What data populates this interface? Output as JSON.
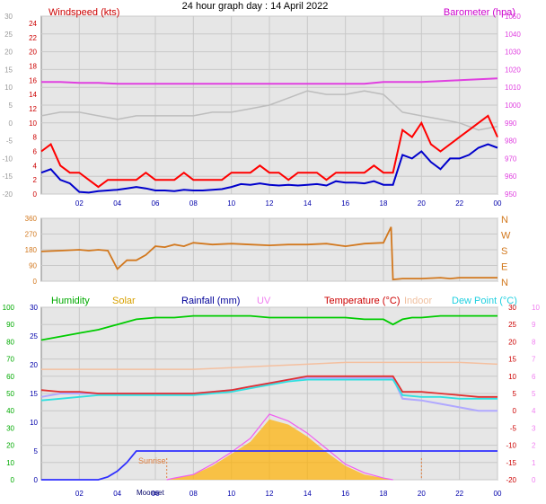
{
  "page": {
    "title": "24 hour graph day : 14 April 2022"
  },
  "colors": {
    "plot_bg": "#e6e6e6",
    "frame": "#808080",
    "wind_bar": "#ff0000",
    "wind_avg": "#0000cc",
    "baro": "#e040e0",
    "grey_trace": "#bdbdbd",
    "wind_dir": "#d2781e",
    "humidity": "#00cc00",
    "solar": "#ffb000",
    "rain": "#3030ff",
    "uv": "#f060f0",
    "temperature": "#e03030",
    "indoor": "#f4c0a0",
    "dew_point": "#30e0e0",
    "feels": "#b0a8ff",
    "sunrise_marker": "#e08040"
  },
  "chart_data": [
    {
      "type": "line",
      "panel": "wind",
      "title": "",
      "y_left_label": "Windspeed (kts)",
      "y_right_label": "Barometer (hpa)",
      "x_ticks": [
        "02",
        "04",
        "06",
        "08",
        "10",
        "12",
        "14",
        "16",
        "18",
        "20",
        "22",
        "00"
      ],
      "x_range_hours": [
        0,
        24
      ],
      "left_outer_ticks": [
        "30",
        "25",
        "20",
        "15",
        "10",
        "5",
        "0",
        "-5",
        "-10",
        "-15",
        "-20"
      ],
      "left_inner_ticks": [
        "24",
        "22",
        "20",
        "18",
        "16",
        "14",
        "12",
        "10",
        "8",
        "6",
        "4",
        "2",
        "0"
      ],
      "left_inner_range": [
        0,
        25
      ],
      "right_ticks": [
        "1050",
        "1040",
        "1030",
        "1020",
        "1010",
        "1000",
        "990",
        "980",
        "970",
        "960",
        "950"
      ],
      "right_range": [
        950,
        1050
      ],
      "grid": true,
      "series": [
        {
          "key": "gust",
          "axis": "left_inner",
          "x": [
            0,
            0.5,
            1,
            1.5,
            2,
            2.5,
            3,
            3.5,
            4,
            4.5,
            5,
            5.5,
            6,
            6.5,
            7,
            7.5,
            8,
            8.5,
            9,
            9.5,
            10,
            10.5,
            11,
            11.5,
            12,
            12.5,
            13,
            13.5,
            14,
            14.5,
            15,
            15.5,
            16,
            16.5,
            17,
            17.5,
            18,
            18.5,
            19,
            19.5,
            20,
            20.5,
            21,
            21.5,
            22,
            22.5,
            23,
            23.5,
            24
          ],
          "values": [
            6,
            7,
            4,
            3,
            3,
            2,
            1,
            2,
            2,
            2,
            2,
            3,
            2,
            2,
            2,
            3,
            2,
            2,
            2,
            2,
            3,
            3,
            3,
            4,
            3,
            3,
            2,
            3,
            3,
            3,
            2,
            3,
            3,
            3,
            3,
            4,
            3,
            3,
            9,
            8,
            10,
            7,
            6,
            7,
            8,
            9,
            10,
            11,
            8
          ]
        },
        {
          "key": "average",
          "axis": "left_inner",
          "x": [
            0,
            0.5,
            1,
            1.5,
            2,
            2.5,
            3,
            3.5,
            4,
            4.5,
            5,
            5.5,
            6,
            6.5,
            7,
            7.5,
            8,
            8.5,
            9,
            9.5,
            10,
            10.5,
            11,
            11.5,
            12,
            12.5,
            13,
            13.5,
            14,
            14.5,
            15,
            15.5,
            16,
            16.5,
            17,
            17.5,
            18,
            18.5,
            19,
            19.5,
            20,
            20.5,
            21,
            21.5,
            22,
            22.5,
            23,
            23.5,
            24
          ],
          "values": [
            3,
            3.5,
            2,
            1.5,
            0.3,
            0.2,
            0.4,
            0.5,
            0.6,
            0.8,
            1,
            0.8,
            0.5,
            0.5,
            0.4,
            0.6,
            0.5,
            0.5,
            0.6,
            0.7,
            1,
            1.4,
            1.3,
            1.5,
            1.3,
            1.2,
            1.3,
            1.2,
            1.3,
            1.4,
            1.2,
            1.8,
            1.6,
            1.6,
            1.5,
            1.8,
            1.3,
            1.3,
            5.5,
            5,
            6,
            4.5,
            3.5,
            5,
            5,
            5.5,
            6.5,
            7,
            6.5
          ]
        },
        {
          "key": "barometer",
          "axis": "right",
          "x": [
            0,
            1,
            2,
            3,
            4,
            5,
            6,
            7,
            8,
            9,
            10,
            11,
            12,
            13,
            14,
            15,
            16,
            17,
            18,
            19,
            20,
            21,
            22,
            23,
            24
          ],
          "values": [
            1013,
            1013,
            1012.5,
            1012.5,
            1012,
            1012,
            1012,
            1012,
            1012,
            1012,
            1012,
            1012,
            1012,
            1012,
            1012,
            1012,
            1012,
            1012,
            1013,
            1013,
            1013,
            1013.5,
            1014,
            1014.5,
            1015
          ]
        },
        {
          "key": "grey_trace",
          "axis": "left_outer",
          "x": [
            0,
            1,
            2,
            3,
            4,
            5,
            6,
            7,
            8,
            9,
            10,
            11,
            12,
            13,
            14,
            15,
            16,
            17,
            18,
            19,
            20,
            21,
            22,
            23,
            24
          ],
          "values": [
            2,
            3,
            3,
            2,
            1,
            2,
            2,
            2,
            2,
            3,
            3,
            4,
            5,
            7,
            9,
            8,
            8,
            9,
            8,
            3,
            2,
            1,
            0,
            -2,
            -1
          ]
        }
      ]
    },
    {
      "type": "line",
      "panel": "wind_direction",
      "title": "",
      "x_range_hours": [
        0,
        24
      ],
      "left_ticks": [
        "360",
        "270",
        "180",
        "90",
        "0"
      ],
      "y_range": [
        0,
        360
      ],
      "right_ticks": [
        "N",
        "W",
        "S",
        "E",
        "N"
      ],
      "grid": true,
      "series": [
        {
          "key": "wind_direction",
          "x": [
            0,
            1,
            2,
            2.5,
            3,
            3.5,
            4,
            4.5,
            5,
            5.5,
            6,
            6.5,
            7,
            7.5,
            8,
            9,
            10,
            11,
            12,
            13,
            14,
            15,
            16,
            17,
            18,
            18.4,
            18.5,
            19,
            20,
            21,
            21.5,
            22,
            23,
            24
          ],
          "values": [
            170,
            175,
            180,
            175,
            180,
            175,
            70,
            120,
            120,
            150,
            200,
            195,
            210,
            200,
            220,
            210,
            215,
            210,
            205,
            210,
            210,
            215,
            200,
            215,
            220,
            310,
            10,
            15,
            15,
            20,
            15,
            20,
            20,
            20
          ]
        }
      ]
    },
    {
      "type": "line",
      "panel": "atmosphere",
      "title": "",
      "x_ticks": [
        "02",
        "04",
        "06",
        "08",
        "10",
        "12",
        "14",
        "16",
        "18",
        "20",
        "22",
        "00"
      ],
      "x_range_hours": [
        0,
        24
      ],
      "left_outer_ticks": [
        "100",
        "90",
        "80",
        "70",
        "60",
        "50",
        "40",
        "30",
        "20",
        "10",
        "0"
      ],
      "left_outer_range": [
        0,
        100
      ],
      "left_inner_ticks": [
        "30",
        "25",
        "20",
        "15",
        "10",
        "5",
        "0"
      ],
      "left_inner_range": [
        0,
        30
      ],
      "right_inner_ticks": [
        "30",
        "25",
        "20",
        "15",
        "10",
        "5",
        "0",
        "-5",
        "-10",
        "-15",
        "-20"
      ],
      "right_inner_range": [
        -20,
        30
      ],
      "right_outer_ticks": [
        "10",
        "9",
        "8",
        "7",
        "6",
        "5",
        "4",
        "3",
        "2",
        "1",
        "0"
      ],
      "right_outer_range": [
        0,
        10
      ],
      "legend": {
        "humidity": "Humidity",
        "solar": "Solar",
        "rainfall": "Rainfall (mm)",
        "uv": "UV",
        "temperature": "Temperature (°C)",
        "indoor": "Indoor",
        "dew_point": "Dew Point (°C)"
      },
      "annotations": {
        "sunrise": "Sunrise",
        "moonset": "Moonset"
      },
      "grid": true,
      "series": [
        {
          "key": "humidity",
          "axis": "left_outer",
          "x": [
            0,
            1,
            2,
            3,
            4,
            5,
            6,
            7,
            8,
            9,
            10,
            11,
            12,
            13,
            14,
            15,
            16,
            17,
            18,
            18.5,
            19,
            19.5,
            20,
            21,
            22,
            23,
            24
          ],
          "values": [
            81,
            83,
            85,
            87,
            90,
            93,
            94,
            94,
            95,
            95,
            95,
            95,
            94,
            94,
            94,
            94,
            94,
            93,
            93,
            90,
            93,
            94,
            94,
            95,
            95,
            95,
            95
          ]
        },
        {
          "key": "temperature",
          "axis": "right_inner",
          "x": [
            0,
            1,
            2,
            3,
            4,
            5,
            6,
            7,
            8,
            9,
            10,
            11,
            12,
            13,
            14,
            15,
            16,
            17,
            18,
            18.5,
            19,
            20,
            21,
            22,
            23,
            24
          ],
          "values": [
            6,
            5.5,
            5.5,
            5,
            5,
            5,
            5,
            5,
            5,
            5.5,
            6,
            7,
            8,
            9,
            10,
            10,
            10,
            10,
            10,
            10,
            5.5,
            5.5,
            5,
            4.5,
            4,
            4
          ]
        },
        {
          "key": "dew_point",
          "axis": "right_inner",
          "x": [
            0,
            1,
            2,
            3,
            4,
            5,
            6,
            7,
            8,
            9,
            10,
            11,
            12,
            13,
            14,
            15,
            16,
            17,
            18,
            18.5,
            19,
            20,
            21,
            22,
            23,
            24
          ],
          "values": [
            3,
            3.5,
            4,
            4.5,
            4.5,
            4.5,
            4.5,
            4.5,
            4.5,
            5,
            5.5,
            6.5,
            7.5,
            8.5,
            9,
            9,
            9,
            9,
            9,
            9,
            4.5,
            4,
            4,
            3.5,
            3.5,
            3.5
          ]
        },
        {
          "key": "indoor",
          "axis": "right_inner",
          "x": [
            0,
            2,
            4,
            6,
            8,
            10,
            12,
            14,
            16,
            18,
            20,
            22,
            24
          ],
          "values": [
            12,
            12,
            12,
            12,
            12,
            12.5,
            13,
            13.5,
            14,
            14,
            14,
            14,
            13.5
          ]
        },
        {
          "key": "feels_like",
          "axis": "right_inner",
          "x": [
            0,
            1,
            2,
            3,
            4,
            5,
            6,
            7,
            8,
            9,
            10,
            11,
            12,
            13,
            14,
            15,
            16,
            17,
            18,
            18.5,
            19,
            20,
            21,
            22,
            23,
            24
          ],
          "values": [
            4,
            5,
            5,
            5,
            5,
            5,
            5,
            5,
            5,
            5.5,
            6,
            7,
            8,
            9,
            9.5,
            9.5,
            9.5,
            9.5,
            9.5,
            9.5,
            3.5,
            3,
            2,
            1,
            0,
            0
          ]
        },
        {
          "key": "rainfall",
          "axis": "left_inner",
          "x": [
            0,
            3,
            3.5,
            4,
            4.5,
            5,
            24
          ],
          "values": [
            0,
            0,
            0.5,
            1.5,
            3,
            5,
            5
          ]
        },
        {
          "key": "solar",
          "axis": "right_outer",
          "x": [
            6.6,
            7,
            8,
            9,
            10,
            11,
            12,
            13,
            14,
            15,
            16,
            17,
            18,
            18.5
          ],
          "values": [
            0,
            0.1,
            0.3,
            0.8,
            1.5,
            2.2,
            3.5,
            3.2,
            2.5,
            1.6,
            0.8,
            0.3,
            0.1,
            0
          ]
        },
        {
          "key": "uv",
          "axis": "right_outer",
          "x": [
            6.6,
            7,
            8,
            9,
            10,
            11,
            12,
            13,
            14,
            15,
            16,
            17,
            18,
            18.5
          ],
          "values": [
            0,
            0.1,
            0.3,
            0.9,
            1.6,
            2.4,
            3.8,
            3.4,
            2.7,
            1.8,
            0.9,
            0.4,
            0.1,
            0
          ]
        }
      ]
    }
  ]
}
